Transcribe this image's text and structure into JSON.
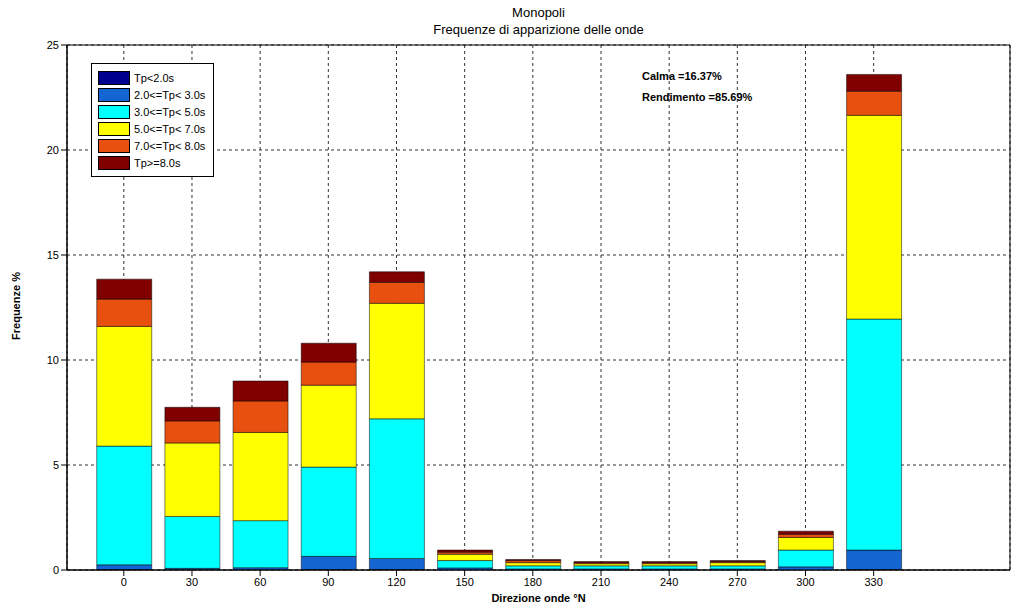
{
  "chart_data": {
    "type": "bar",
    "title": "Monopoli",
    "subtitle": "Frequenze di apparizione delle onde",
    "x_label": "Direzione onde °N",
    "y_label": "Frequenze %",
    "annotations": [
      "Calma =16.37%",
      "Rendimento =85.69%"
    ],
    "x": [
      0,
      30,
      60,
      90,
      120,
      150,
      180,
      210,
      240,
      270,
      300,
      330
    ],
    "xlim": [
      -25,
      390
    ],
    "xticks": [
      0,
      30,
      60,
      90,
      120,
      150,
      180,
      210,
      240,
      270,
      300,
      330
    ],
    "ylim": [
      0,
      25
    ],
    "yticks": [
      0,
      5,
      10,
      15,
      20,
      25
    ],
    "grid": true,
    "stacked": true,
    "legend": "upper left",
    "series": [
      {
        "name": "Tp<2.0s",
        "color": "#00008f",
        "values": [
          0.02,
          0.01,
          0.01,
          0.02,
          0.02,
          0,
          0,
          0,
          0,
          0,
          0,
          0.02
        ]
      },
      {
        "name": "2.0<=Tp< 3.0s",
        "color": "#1464d2",
        "values": [
          0.23,
          0.07,
          0.1,
          0.63,
          0.53,
          0.1,
          0.05,
          0.05,
          0.05,
          0.05,
          0.15,
          0.93
        ]
      },
      {
        "name": "3.0<=Tp< 5.0s",
        "color": "#00ffff",
        "values": [
          5.65,
          2.47,
          2.24,
          4.25,
          6.65,
          0.35,
          0.15,
          0.15,
          0.15,
          0.15,
          0.8,
          11.0
        ]
      },
      {
        "name": "5.0<=Tp< 7.0s",
        "color": "#ffff00",
        "values": [
          5.7,
          3.5,
          4.2,
          3.9,
          5.5,
          0.3,
          0.15,
          0.1,
          0.1,
          0.15,
          0.6,
          9.7
        ]
      },
      {
        "name": "7.0<=Tp< 8.0s",
        "color": "#e8500f",
        "values": [
          1.3,
          1.05,
          1.5,
          1.1,
          1.0,
          0.1,
          0.1,
          0.05,
          0.05,
          0.05,
          0.15,
          1.15
        ]
      },
      {
        "name": "Tp>=8.0s",
        "color": "#800000",
        "values": [
          0.95,
          0.65,
          0.95,
          0.9,
          0.5,
          0.1,
          0.05,
          0.05,
          0.05,
          0.05,
          0.15,
          0.8
        ]
      }
    ]
  }
}
